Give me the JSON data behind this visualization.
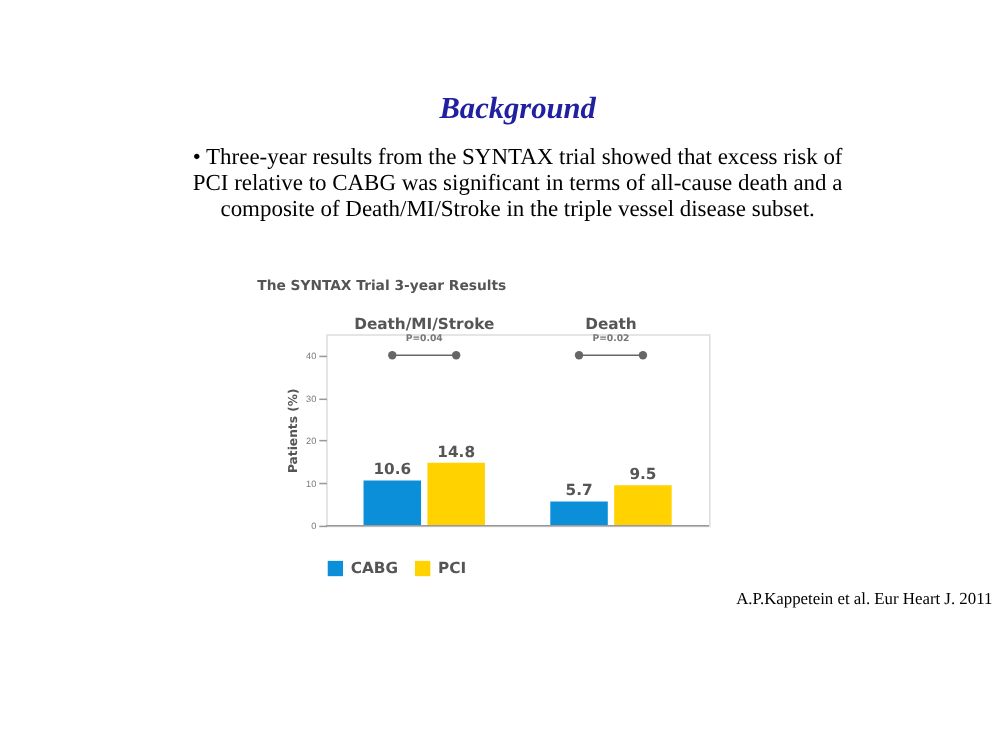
{
  "chart_data": {
    "type": "bar",
    "title": "Background",
    "subtitle": "• Three-year results from the SYNTAX trial showed that excess risk of PCI relative to CABG was significant in terms of all-cause death and a composite of Death/MI/Stroke in the triple vessel disease subset.",
    "annotations": [
      "The SYNTAX Trial 3-year Results",
      "P=0.04",
      "P=0.02",
      "A.P.Kappetein et al. Eur Heart J. 2011"
    ],
    "categories": [
      "Death/MI/Stroke",
      "Death"
    ],
    "series": [
      {
        "name": "CABG",
        "color": "#0a8fd8",
        "values": [
          10.6,
          5.7
        ]
      },
      {
        "name": "PCI",
        "color": "#ffd200",
        "values": [
          14.8,
          9.5
        ]
      }
    ],
    "ylabel": "Patients (%)",
    "ylim": [
      0,
      45
    ],
    "yticks": [
      0,
      10,
      20,
      30,
      40
    ],
    "data_labels": true,
    "legend": "bottom",
    "grid": false
  }
}
